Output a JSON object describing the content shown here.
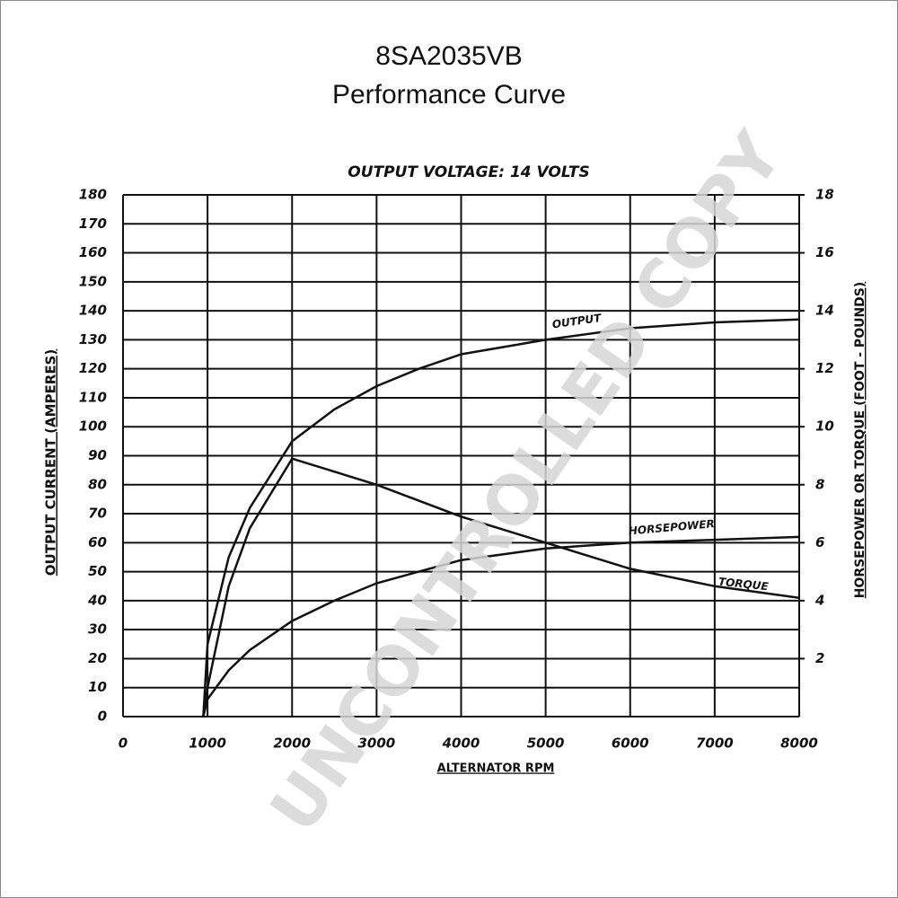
{
  "chart_data": {
    "type": "line",
    "title": "8SA2035VB",
    "subtitle": "Performance Curve",
    "annotation": "OUTPUT VOLTAGE: 14 VOLTS",
    "watermark": "UNCONTROLLED COPY",
    "xlabel": "ALTERNATOR RPM",
    "ylabel": "OUTPUT CURRENT (AMPERES)",
    "y2label": "HORSEPOWER OR TORQUE (FOOT - POUNDS)",
    "xlim": [
      0,
      8000
    ],
    "xticks": [
      0,
      1000,
      2000,
      3000,
      4000,
      5000,
      6000,
      7000,
      8000
    ],
    "ylim": [
      0,
      180
    ],
    "yticks": [
      0,
      10,
      20,
      30,
      40,
      50,
      60,
      70,
      80,
      90,
      100,
      110,
      120,
      130,
      140,
      150,
      160,
      170,
      180
    ],
    "y2lim": [
      0,
      18
    ],
    "y2ticks": [
      2,
      4,
      6,
      8,
      10,
      12,
      14,
      16,
      18
    ],
    "grid": true,
    "series": [
      {
        "name": "OUTPUT",
        "color": "#111111",
        "x": [
          950,
          1000,
          1250,
          1500,
          2000,
          2500,
          3000,
          3500,
          4000,
          5000,
          6000,
          7000,
          8000
        ],
        "values": [
          0,
          25,
          55,
          72,
          95,
          106,
          114,
          120,
          125,
          130,
          134,
          136,
          137
        ]
      },
      {
        "name": "HORSEPOWER",
        "color": "#111111",
        "axis": "y2",
        "x": [
          950,
          1000,
          1250,
          1500,
          2000,
          2500,
          3000,
          3500,
          4000,
          5000,
          6000,
          7000,
          8000
        ],
        "values": [
          0,
          0.6,
          1.6,
          2.3,
          3.3,
          4.0,
          4.6,
          5.0,
          5.4,
          5.8,
          6.0,
          6.1,
          6.2
        ]
      },
      {
        "name": "TORQUE",
        "color": "#111111",
        "axis": "y2",
        "x": [
          950,
          1000,
          1250,
          1500,
          2000,
          3000,
          4000,
          5000,
          6000,
          7000,
          8000
        ],
        "values": [
          0,
          1.0,
          4.5,
          6.5,
          8.9,
          8.0,
          6.9,
          6.0,
          5.1,
          4.5,
          4.1
        ]
      }
    ]
  }
}
